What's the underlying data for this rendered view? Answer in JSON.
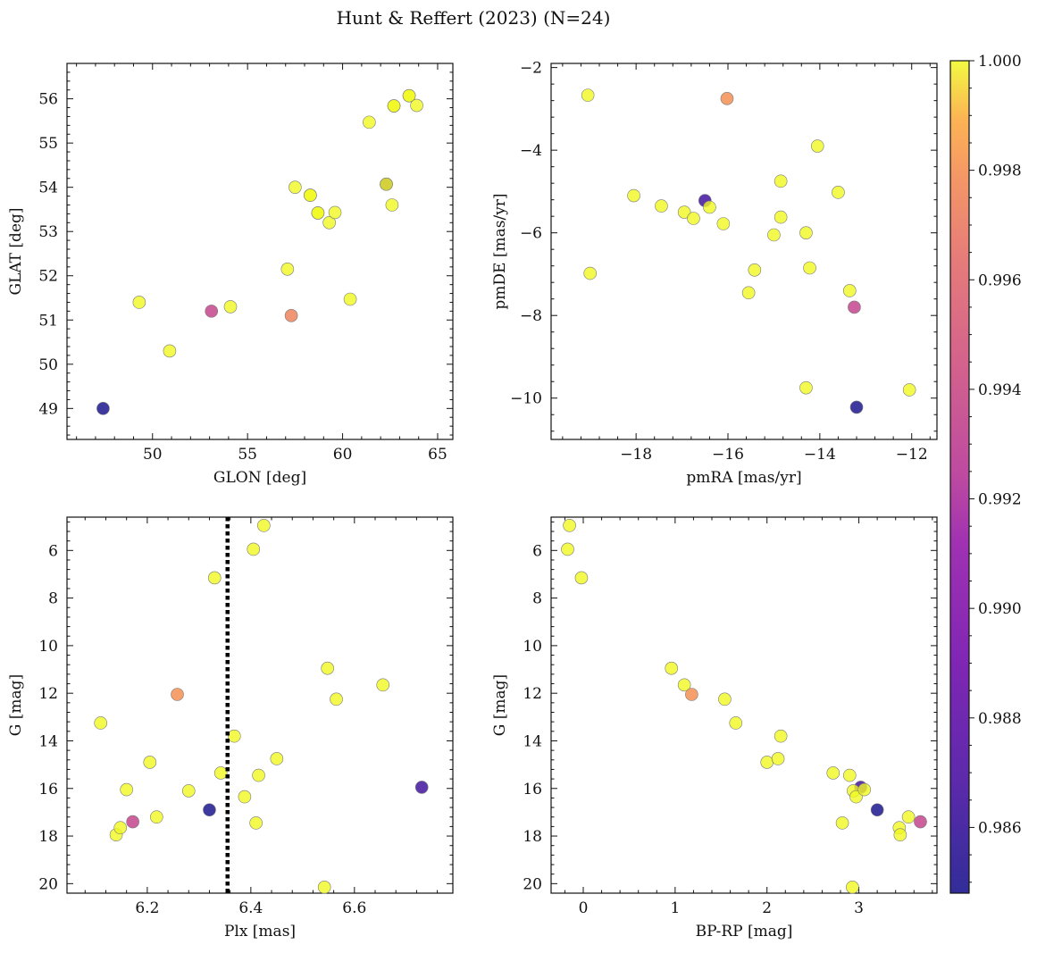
{
  "figure": {
    "title": "Hunt & Reffert (2023) (N=24)",
    "colorbar": {
      "colormap": "plasma",
      "range": [
        0.9848,
        1.0
      ],
      "ticks": [
        0.986,
        0.988,
        0.99,
        0.992,
        0.994,
        0.996,
        0.998,
        1.0
      ],
      "tick_labels": [
        "0.986",
        "0.988",
        "0.990",
        "0.992",
        "0.994",
        "0.996",
        "0.998",
        "1.000"
      ]
    }
  },
  "chart_data": [
    {
      "type": "scatter",
      "xlabel": "GLON [deg]",
      "ylabel": "GLAT [deg]",
      "xlim": [
        45.5,
        65.8
      ],
      "ylim": [
        48.3,
        56.8
      ],
      "y_inverted": false,
      "xticks": [
        50,
        55,
        60,
        65
      ],
      "xtick_labels": [
        "50",
        "55",
        "60",
        "65"
      ],
      "yticks": [
        49,
        50,
        51,
        52,
        53,
        54,
        55,
        56
      ],
      "ytick_labels": [
        "49",
        "50",
        "51",
        "52",
        "53",
        "54",
        "55",
        "56"
      ],
      "vline": null,
      "points": [
        {
          "x": 47.4,
          "y": 49.0,
          "c": 0.9848
        },
        {
          "x": 49.3,
          "y": 51.4,
          "c": 1.0
        },
        {
          "x": 50.9,
          "y": 50.3,
          "c": 1.0
        },
        {
          "x": 53.1,
          "y": 51.2,
          "c": 0.9935
        },
        {
          "x": 54.1,
          "y": 51.3,
          "c": 1.0
        },
        {
          "x": 57.1,
          "y": 52.15,
          "c": 1.0
        },
        {
          "x": 57.3,
          "y": 51.1,
          "c": 0.9975
        },
        {
          "x": 57.5,
          "y": 54.0,
          "c": 1.0
        },
        {
          "x": 58.3,
          "y": 53.82,
          "c": 1.0
        },
        {
          "x": 58.3,
          "y": 53.82,
          "c": 1.0
        },
        {
          "x": 58.7,
          "y": 53.42,
          "c": 1.0
        },
        {
          "x": 58.7,
          "y": 53.42,
          "c": 1.0
        },
        {
          "x": 59.3,
          "y": 53.2,
          "c": 1.0
        },
        {
          "x": 59.6,
          "y": 53.43,
          "c": 1.0
        },
        {
          "x": 60.4,
          "y": 51.47,
          "c": 1.0
        },
        {
          "x": 61.4,
          "y": 55.47,
          "c": 1.0
        },
        {
          "x": 62.3,
          "y": 54.07,
          "c": 0.9865
        },
        {
          "x": 62.3,
          "y": 54.07,
          "c": 1.0
        },
        {
          "x": 62.6,
          "y": 53.6,
          "c": 1.0
        },
        {
          "x": 62.7,
          "y": 55.84,
          "c": 1.0
        },
        {
          "x": 62.7,
          "y": 55.84,
          "c": 1.0
        },
        {
          "x": 63.5,
          "y": 56.07,
          "c": 1.0
        },
        {
          "x": 63.5,
          "y": 56.07,
          "c": 1.0
        },
        {
          "x": 63.9,
          "y": 55.85,
          "c": 1.0
        }
      ]
    },
    {
      "type": "scatter",
      "xlabel": "pmRA [mas/yr]",
      "ylabel": "pmDE [mas/yr]",
      "xlim": [
        -19.85,
        -11.45
      ],
      "ylim": [
        -11.0,
        -1.9
      ],
      "y_inverted": false,
      "xticks": [
        -18,
        -16,
        -14,
        -12
      ],
      "xtick_labels": [
        "−18",
        "−16",
        "−14",
        "−12"
      ],
      "yticks": [
        -10,
        -8,
        -6,
        -4,
        -2
      ],
      "ytick_labels": [
        "−10",
        "−8",
        "−6",
        "−4",
        "−2"
      ],
      "vline": null,
      "points": [
        {
          "x": -19.05,
          "y": -2.67,
          "c": 1.0
        },
        {
          "x": -19.0,
          "y": -6.98,
          "c": 1.0
        },
        {
          "x": -18.05,
          "y": -5.1,
          "c": 1.0
        },
        {
          "x": -17.45,
          "y": -5.35,
          "c": 1.0
        },
        {
          "x": -16.95,
          "y": -5.5,
          "c": 1.0
        },
        {
          "x": -16.75,
          "y": -5.65,
          "c": 1.0
        },
        {
          "x": -16.5,
          "y": -5.22,
          "c": 0.9865
        },
        {
          "x": -16.4,
          "y": -5.38,
          "c": 1.0
        },
        {
          "x": -16.1,
          "y": -5.78,
          "c": 1.0
        },
        {
          "x": -16.02,
          "y": -2.75,
          "c": 0.998
        },
        {
          "x": -15.55,
          "y": -7.45,
          "c": 1.0
        },
        {
          "x": -15.42,
          "y": -6.9,
          "c": 1.0
        },
        {
          "x": -15.0,
          "y": -6.05,
          "c": 1.0
        },
        {
          "x": -14.85,
          "y": -5.62,
          "c": 1.0
        },
        {
          "x": -14.85,
          "y": -4.75,
          "c": 1.0
        },
        {
          "x": -14.3,
          "y": -9.75,
          "c": 1.0
        },
        {
          "x": -14.3,
          "y": -6.0,
          "c": 1.0
        },
        {
          "x": -14.22,
          "y": -6.85,
          "c": 1.0
        },
        {
          "x": -14.05,
          "y": -3.9,
          "c": 1.0
        },
        {
          "x": -13.6,
          "y": -5.02,
          "c": 1.0
        },
        {
          "x": -13.35,
          "y": -7.4,
          "c": 1.0
        },
        {
          "x": -13.25,
          "y": -7.8,
          "c": 0.9935
        },
        {
          "x": -13.2,
          "y": -10.22,
          "c": 0.9848
        },
        {
          "x": -12.05,
          "y": -9.8,
          "c": 1.0
        }
      ]
    },
    {
      "type": "scatter",
      "xlabel": "Plx [mas]",
      "ylabel": "G [mag]",
      "xlim": [
        6.045,
        6.79
      ],
      "ylim": [
        20.4,
        4.6
      ],
      "y_inverted": true,
      "xticks": [
        6.2,
        6.4,
        6.6
      ],
      "xtick_labels": [
        "6.2",
        "6.4",
        "6.6"
      ],
      "yticks": [
        6,
        8,
        10,
        12,
        14,
        16,
        18,
        20
      ],
      "ytick_labels": [
        "6",
        "8",
        "10",
        "12",
        "14",
        "16",
        "18",
        "20"
      ],
      "vline": 6.355,
      "points": [
        {
          "x": 6.11,
          "y": 13.25,
          "c": 1.0
        },
        {
          "x": 6.14,
          "y": 17.95,
          "c": 1.0
        },
        {
          "x": 6.148,
          "y": 17.65,
          "c": 1.0
        },
        {
          "x": 6.16,
          "y": 16.05,
          "c": 1.0
        },
        {
          "x": 6.172,
          "y": 17.4,
          "c": 0.9935
        },
        {
          "x": 6.205,
          "y": 14.9,
          "c": 1.0
        },
        {
          "x": 6.218,
          "y": 17.2,
          "c": 1.0
        },
        {
          "x": 6.258,
          "y": 12.05,
          "c": 0.998
        },
        {
          "x": 6.28,
          "y": 16.1,
          "c": 1.0
        },
        {
          "x": 6.32,
          "y": 16.9,
          "c": 0.9848
        },
        {
          "x": 6.33,
          "y": 7.15,
          "c": 1.0
        },
        {
          "x": 6.342,
          "y": 15.35,
          "c": 1.0
        },
        {
          "x": 6.368,
          "y": 13.8,
          "c": 1.0
        },
        {
          "x": 6.388,
          "y": 16.35,
          "c": 1.0
        },
        {
          "x": 6.405,
          "y": 5.95,
          "c": 1.0
        },
        {
          "x": 6.41,
          "y": 17.45,
          "c": 1.0
        },
        {
          "x": 6.415,
          "y": 15.45,
          "c": 1.0
        },
        {
          "x": 6.425,
          "y": 4.95,
          "c": 1.0
        },
        {
          "x": 6.45,
          "y": 14.75,
          "c": 1.0
        },
        {
          "x": 6.542,
          "y": 20.15,
          "c": 1.0
        },
        {
          "x": 6.548,
          "y": 10.95,
          "c": 1.0
        },
        {
          "x": 6.565,
          "y": 12.25,
          "c": 1.0
        },
        {
          "x": 6.655,
          "y": 11.65,
          "c": 1.0
        },
        {
          "x": 6.73,
          "y": 15.95,
          "c": 0.9865
        }
      ]
    },
    {
      "type": "scatter",
      "xlabel": "BP-RP [mag]",
      "ylabel": "G [mag]",
      "xlim": [
        -0.35,
        3.85
      ],
      "ylim": [
        20.4,
        4.6
      ],
      "y_inverted": true,
      "xticks": [
        0,
        1,
        2,
        3
      ],
      "xtick_labels": [
        "0",
        "1",
        "2",
        "3"
      ],
      "yticks": [
        6,
        8,
        10,
        12,
        14,
        16,
        18,
        20
      ],
      "ytick_labels": [
        "6",
        "8",
        "10",
        "12",
        "14",
        "16",
        "18",
        "20"
      ],
      "vline": null,
      "points": [
        {
          "x": -0.15,
          "y": 4.95,
          "c": 1.0
        },
        {
          "x": -0.17,
          "y": 5.95,
          "c": 1.0
        },
        {
          "x": -0.02,
          "y": 7.15,
          "c": 1.0
        },
        {
          "x": 0.96,
          "y": 10.95,
          "c": 1.0
        },
        {
          "x": 1.1,
          "y": 11.65,
          "c": 1.0
        },
        {
          "x": 1.18,
          "y": 12.05,
          "c": 0.998
        },
        {
          "x": 1.54,
          "y": 12.25,
          "c": 1.0
        },
        {
          "x": 1.66,
          "y": 13.25,
          "c": 1.0
        },
        {
          "x": 2.0,
          "y": 14.9,
          "c": 1.0
        },
        {
          "x": 2.12,
          "y": 14.75,
          "c": 1.0
        },
        {
          "x": 2.15,
          "y": 13.8,
          "c": 1.0
        },
        {
          "x": 2.72,
          "y": 15.35,
          "c": 1.0
        },
        {
          "x": 2.82,
          "y": 17.45,
          "c": 1.0
        },
        {
          "x": 2.9,
          "y": 15.45,
          "c": 1.0
        },
        {
          "x": 2.93,
          "y": 20.15,
          "c": 1.0
        },
        {
          "x": 3.02,
          "y": 15.95,
          "c": 0.9865
        },
        {
          "x": 2.94,
          "y": 16.1,
          "c": 1.0
        },
        {
          "x": 2.97,
          "y": 16.35,
          "c": 1.0
        },
        {
          "x": 3.06,
          "y": 16.05,
          "c": 1.0
        },
        {
          "x": 3.2,
          "y": 16.9,
          "c": 0.9848
        },
        {
          "x": 3.44,
          "y": 17.65,
          "c": 1.0
        },
        {
          "x": 3.45,
          "y": 17.95,
          "c": 1.0
        },
        {
          "x": 3.54,
          "y": 17.2,
          "c": 1.0
        },
        {
          "x": 3.67,
          "y": 17.4,
          "c": 0.9935
        }
      ]
    }
  ]
}
